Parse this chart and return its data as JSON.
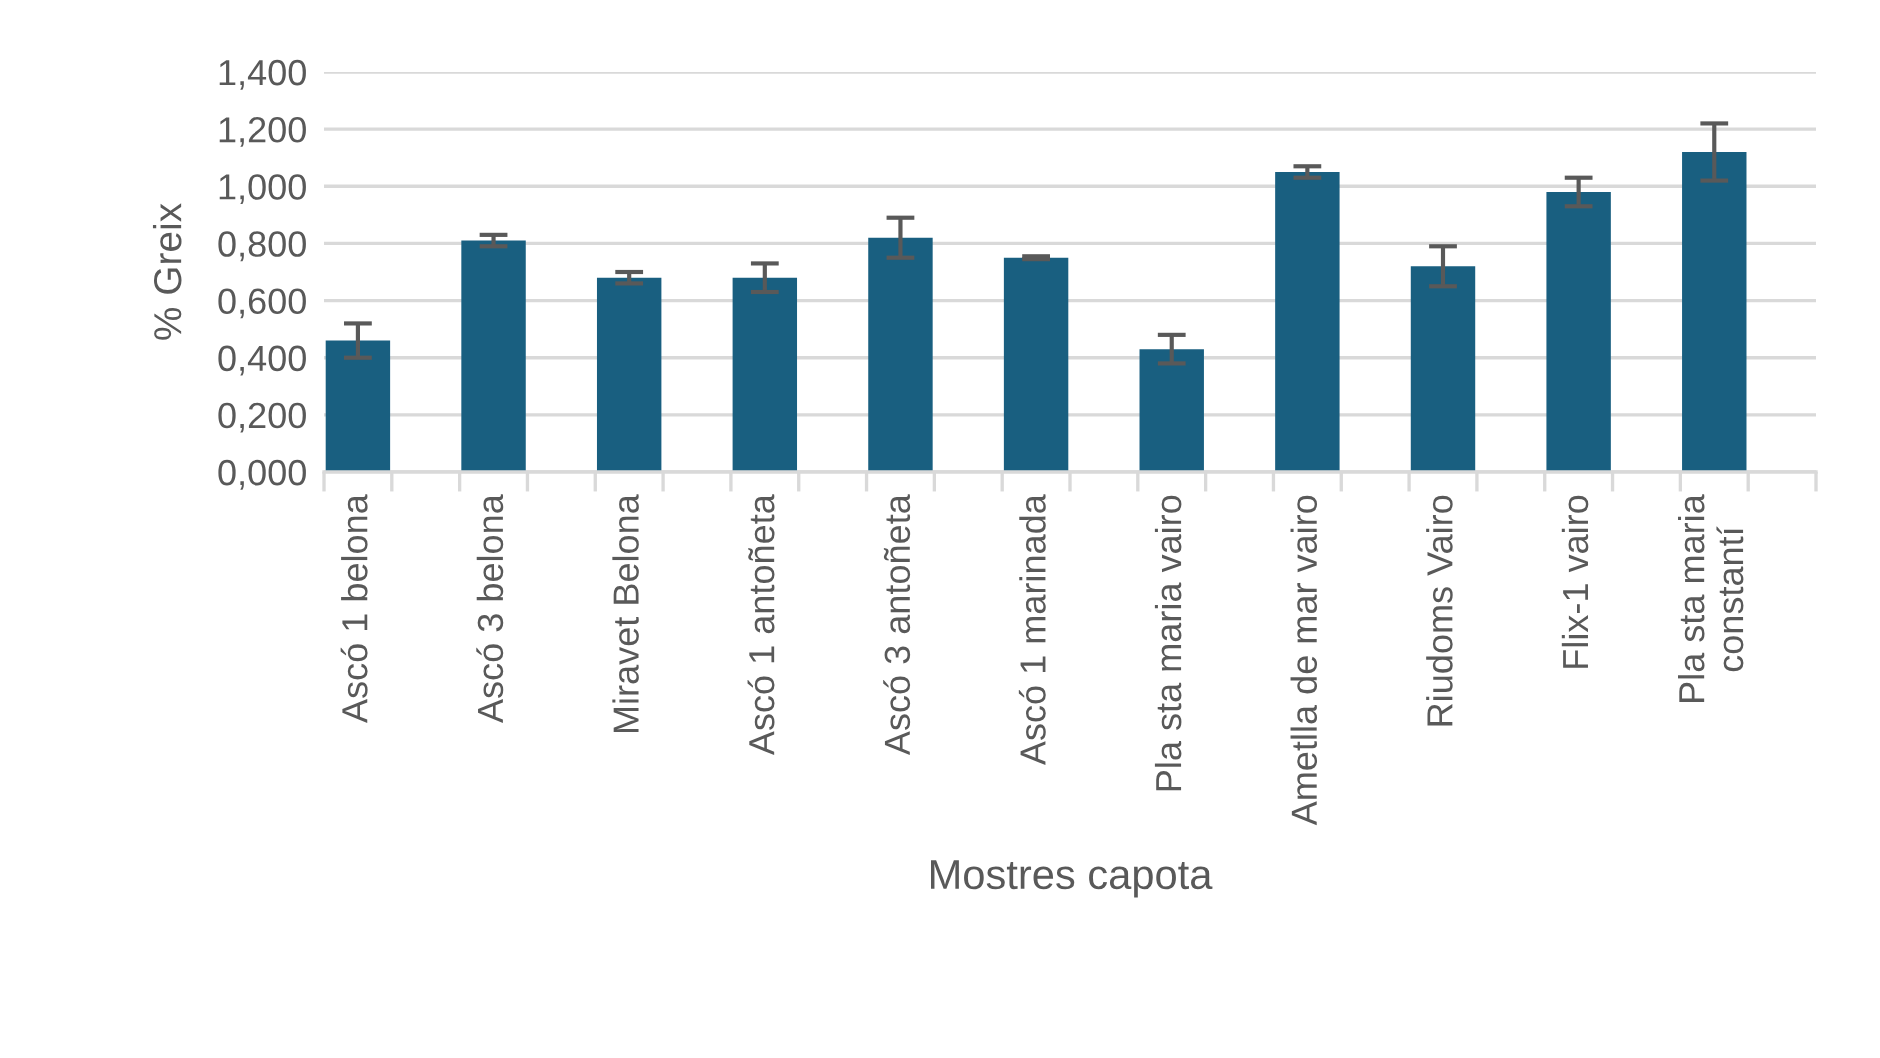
{
  "chart_data": {
    "type": "bar",
    "xlabel": "Mostres capota",
    "ylabel": "% Greix",
    "categories": [
      "Ascó 1 belona",
      null,
      "Ascó 3 belona",
      null,
      "Miravet Belona",
      null,
      "Ascó 1 antoñeta",
      null,
      "Ascó 3 antoñeta",
      null,
      "Ascó 1 marinada",
      null,
      "Pla sta maria vairo",
      null,
      "Ametlla de mar vairo",
      null,
      "Riudoms Vairo",
      null,
      "Flix-1 vairo",
      null,
      "Pla sta maria\nconstantí",
      null
    ],
    "values": [
      0.46,
      null,
      0.81,
      null,
      0.68,
      null,
      0.68,
      null,
      0.82,
      null,
      0.75,
      null,
      0.43,
      null,
      1.05,
      null,
      0.72,
      null,
      0.98,
      null,
      1.12,
      null
    ],
    "errors": [
      0.06,
      null,
      0.02,
      null,
      0.02,
      null,
      0.05,
      null,
      0.07,
      null,
      0.005,
      null,
      0.05,
      null,
      0.02,
      null,
      0.07,
      null,
      0.05,
      null,
      0.1,
      null
    ],
    "color": "#195f80",
    "ylim": [
      0,
      1.4
    ],
    "yticks": [
      {
        "value": 0,
        "label": "0,000"
      },
      {
        "value": 0.2,
        "label": "0,200"
      },
      {
        "value": 0.4,
        "label": "0,400"
      },
      {
        "value": 0.6,
        "label": "0,600"
      },
      {
        "value": 0.8,
        "label": "0,800"
      },
      {
        "value": 1.0,
        "label": "1,000"
      },
      {
        "value": 1.2,
        "label": "1,200"
      },
      {
        "value": 1.4,
        "label": "1,400"
      }
    ],
    "grid": "y"
  }
}
